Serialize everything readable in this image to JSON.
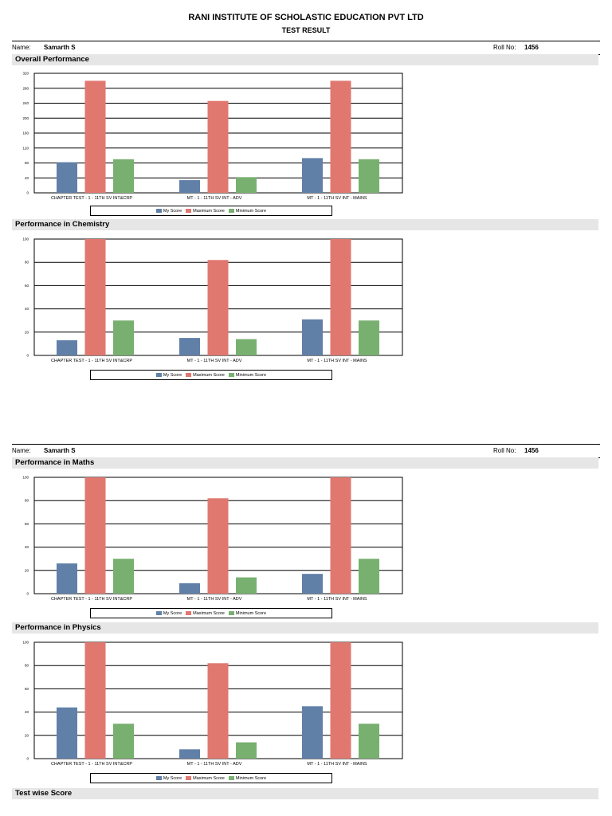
{
  "header": {
    "org": "RANI INSTITUTE OF SCHOLASTIC EDUCATION PVT LTD",
    "subtitle": "TEST RESULT"
  },
  "student": {
    "name_label": "Name:",
    "name": "Samarth S",
    "roll_label": "Roll No:",
    "roll": "1456"
  },
  "colors": {
    "my": "#6080a8",
    "max": "#e07870",
    "min": "#78b070"
  },
  "legend": [
    "My Score",
    "Maximum Score",
    "Minimum Score"
  ],
  "sections": {
    "overall": "Overall Performance",
    "chemistry": "Performance in Chemistry",
    "maths": "Performance in Maths",
    "physics": "Performance in Physics",
    "testwise": "Test wise Score"
  },
  "chart_data": [
    {
      "type": "bar",
      "title": "Overall Performance",
      "categories": [
        "CHAPTER TEST - 1 - 11TH SV INT&CRP",
        "MT - 1 - 11TH SV INT - ADV",
        "MT - 1 - 11TH SV INT - MAINS"
      ],
      "series": [
        {
          "name": "My Score",
          "values": [
            82,
            34,
            93
          ]
        },
        {
          "name": "Maximum Score",
          "values": [
            300,
            246,
            300
          ]
        },
        {
          "name": "Minimum Score",
          "values": [
            90,
            42,
            90
          ]
        }
      ],
      "ylim": [
        0,
        320
      ],
      "yticks": [
        0,
        40,
        80,
        120,
        160,
        200,
        240,
        280,
        320
      ],
      "grid": true,
      "legend": "bottom"
    },
    {
      "type": "bar",
      "title": "Performance in Chemistry",
      "categories": [
        "CHAPTER TEST - 1 - 11TH SV INT&CRP",
        "MT - 1 - 11TH SV INT - ADV",
        "MT - 1 - 11TH SV INT - MAINS"
      ],
      "series": [
        {
          "name": "My Score",
          "values": [
            13,
            15,
            31
          ]
        },
        {
          "name": "Maximum Score",
          "values": [
            100,
            82,
            100
          ]
        },
        {
          "name": "Minimum Score",
          "values": [
            30,
            14,
            30
          ]
        }
      ],
      "ylim": [
        0,
        100
      ],
      "yticks": [
        0,
        20,
        40,
        60,
        80,
        100
      ],
      "grid": true,
      "legend": "bottom"
    },
    {
      "type": "bar",
      "title": "Performance in Maths",
      "categories": [
        "CHAPTER TEST - 1 - 11TH SV INT&CRP",
        "MT - 1 - 11TH SV INT - ADV",
        "MT - 1 - 11TH SV INT - MAINS"
      ],
      "series": [
        {
          "name": "My Score",
          "values": [
            26,
            9,
            17
          ]
        },
        {
          "name": "Maximum Score",
          "values": [
            100,
            82,
            100
          ]
        },
        {
          "name": "Minimum Score",
          "values": [
            30,
            14,
            30
          ]
        }
      ],
      "ylim": [
        0,
        100
      ],
      "yticks": [
        0,
        20,
        40,
        60,
        80,
        100
      ],
      "grid": true,
      "legend": "bottom"
    },
    {
      "type": "bar",
      "title": "Performance in Physics",
      "categories": [
        "CHAPTER TEST - 1 - 11TH SV INT&CRP",
        "MT - 1 - 11TH SV INT - ADV",
        "MT - 1 - 11TH SV INT - MAINS"
      ],
      "series": [
        {
          "name": "My Score",
          "values": [
            44,
            8,
            45
          ]
        },
        {
          "name": "Maximum Score",
          "values": [
            100,
            82,
            100
          ]
        },
        {
          "name": "Minimum Score",
          "values": [
            30,
            14,
            30
          ]
        }
      ],
      "ylim": [
        0,
        100
      ],
      "yticks": [
        0,
        20,
        40,
        60,
        80,
        100
      ],
      "grid": true,
      "legend": "bottom"
    }
  ]
}
